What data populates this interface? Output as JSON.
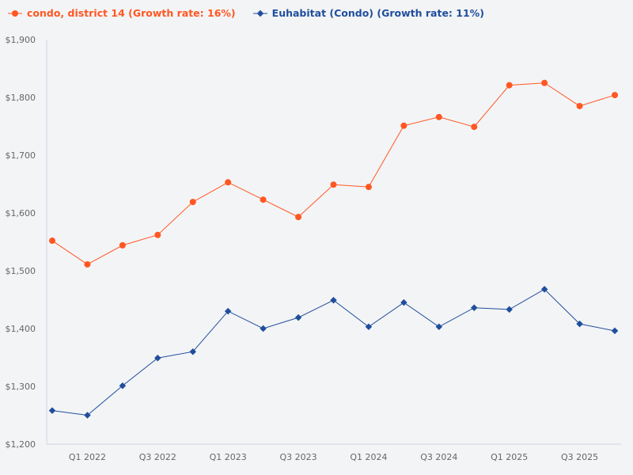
{
  "chart_data": {
    "type": "line",
    "x": [
      "Q4 2021",
      "Q1 2022",
      "Q2 2022",
      "Q3 2022",
      "Q4 2022",
      "Q1 2023",
      "Q2 2023",
      "Q3 2023",
      "Q4 2023",
      "Q1 2024",
      "Q2 2024",
      "Q3 2024",
      "Q4 2024",
      "Q1 2025",
      "Q2 2025",
      "Q3 2025",
      "Q4 2025"
    ],
    "xtick_labels": [
      "Q1 2022",
      "Q3 2022",
      "Q1 2023",
      "Q3 2023",
      "Q1 2024",
      "Q3 2024",
      "Q1 2025",
      "Q3 2025"
    ],
    "ylim": [
      1200,
      1900
    ],
    "yticks": [
      1200,
      1300,
      1400,
      1500,
      1600,
      1700,
      1800,
      1900
    ],
    "ytick_labels": [
      "$1,200",
      "$1,300",
      "$1,400",
      "$1,500",
      "$1,600",
      "$1,700",
      "$1,800",
      "$1,900"
    ],
    "legend_position": "top-left",
    "grid": false,
    "series": [
      {
        "name": "condo, district 14 (Growth rate: 16%)",
        "color": "#ff5722",
        "marker": "circle",
        "values": [
          1552,
          1511,
          1544,
          1562,
          1619,
          1653,
          1623,
          1593,
          1649,
          1645,
          1751,
          1766,
          1749,
          1821,
          1825,
          1785,
          1804
        ]
      },
      {
        "name": "Euhabitat (Condo) (Growth rate: 11%)",
        "color": "#1f4e9c",
        "marker": "diamond",
        "values": [
          1258,
          1250,
          1301,
          1349,
          1360,
          1430,
          1400,
          1419,
          1449,
          1403,
          1445,
          1403,
          1436,
          1433,
          1468,
          1408,
          1396
        ]
      }
    ]
  }
}
